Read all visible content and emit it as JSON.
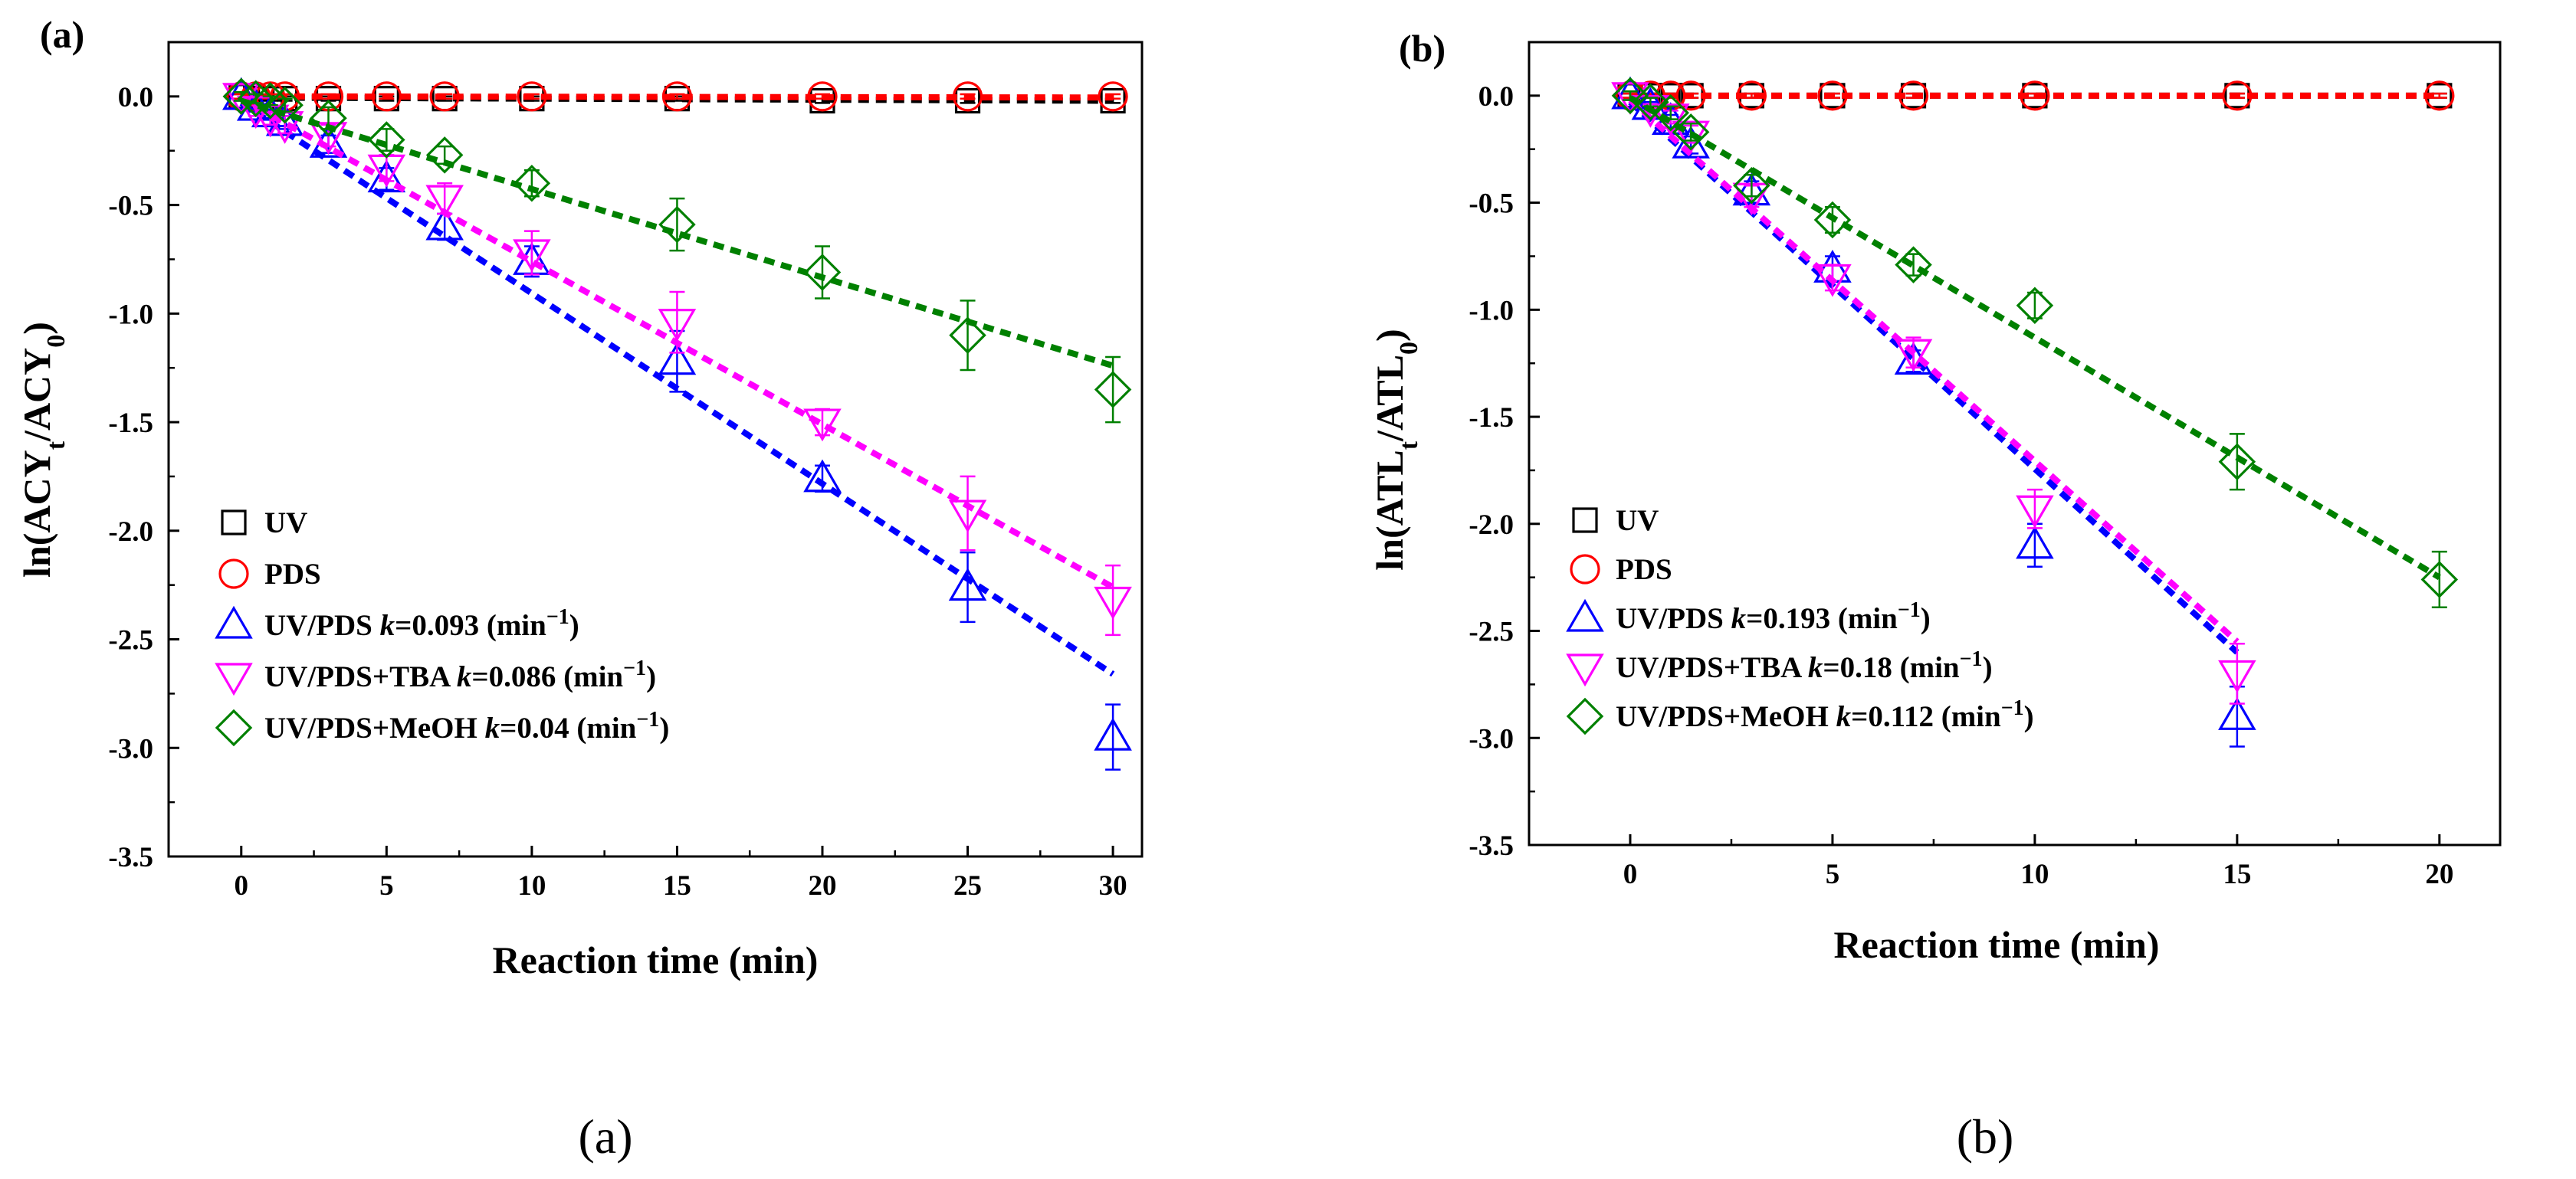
{
  "figure": {
    "captions": [
      "(a)",
      "(b)"
    ]
  },
  "chart_data": [
    {
      "type": "scatter",
      "panel_label": "(a)",
      "xlabel": "Reaction time (min)",
      "ylabel": {
        "pre": "ln(ACY",
        "sub1": "t",
        "mid": "/ACY",
        "sub2": "0",
        "post": ")"
      },
      "xlim": [
        -2.5,
        31
      ],
      "ylim": [
        -3.5,
        0.25
      ],
      "xticks": [
        0,
        5,
        10,
        15,
        20,
        25,
        30
      ],
      "yticks": [
        0.0,
        -0.5,
        -1.0,
        -1.5,
        -2.0,
        -2.5,
        -3.0,
        -3.5
      ],
      "xtick_labels": [
        "0",
        "5",
        "10",
        "15",
        "20",
        "25",
        "30"
      ],
      "ytick_labels": [
        "0.0",
        "-0.5",
        "-1.0",
        "-1.5",
        "-2.0",
        "-2.5",
        "-3.0",
        "-3.5"
      ],
      "legend_position": "bottom-left",
      "series": [
        {
          "name": "UV",
          "k_label": "",
          "marker": "square",
          "color": "#000000",
          "line_color": "#000000",
          "x": [
            0,
            0.5,
            1,
            1.5,
            3,
            5,
            7,
            10,
            15,
            20,
            25,
            30
          ],
          "y": [
            0,
            -0.01,
            -0.01,
            -0.01,
            -0.01,
            -0.01,
            -0.01,
            -0.01,
            -0.01,
            -0.02,
            -0.02,
            -0.02
          ],
          "err": [
            0.01,
            0.01,
            0.01,
            0.01,
            0.01,
            0.01,
            0.01,
            0.01,
            0.01,
            0.01,
            0.01,
            0.01
          ],
          "fit": [
            [
              0,
              -0.005
            ],
            [
              30,
              -0.02
            ]
          ]
        },
        {
          "name": "PDS",
          "k_label": "",
          "marker": "circle",
          "color": "#ff0000",
          "line_color": "#ff0000",
          "x": [
            0,
            0.5,
            1,
            1.5,
            3,
            5,
            7,
            10,
            15,
            20,
            25,
            30
          ],
          "y": [
            0,
            0,
            0,
            0,
            0,
            0,
            0,
            0,
            0,
            0,
            0,
            0
          ],
          "err": [
            0.01,
            0.01,
            0.01,
            0.01,
            0.01,
            0.01,
            0.01,
            0.01,
            0.01,
            0.01,
            0.01,
            0.01
          ],
          "fit": [
            [
              0,
              0
            ],
            [
              30,
              -0.005
            ]
          ]
        },
        {
          "name": "UV/PDS",
          "k_label": "0.093",
          "marker": "triangle-up",
          "color": "#0000ff",
          "line_color": "#0000ff",
          "x": [
            0,
            0.5,
            1,
            1.5,
            3,
            5,
            7,
            10,
            15,
            20,
            25,
            30
          ],
          "y": [
            0,
            -0.05,
            -0.08,
            -0.12,
            -0.22,
            -0.38,
            -0.6,
            -0.76,
            -1.22,
            -1.76,
            -2.26,
            -2.95
          ],
          "err": [
            0.02,
            0.02,
            0.02,
            0.03,
            0.04,
            0.05,
            0.06,
            0.07,
            0.14,
            0.06,
            0.16,
            0.15
          ],
          "fit": [
            [
              0,
              -0.03
            ],
            [
              30,
              -2.66
            ]
          ]
        },
        {
          "name": "UV/PDS+TBA",
          "k_label": "0.086",
          "marker": "triangle-down",
          "color": "#ff00ff",
          "line_color": "#ff00ff",
          "x": [
            0,
            0.5,
            1,
            1.5,
            3,
            5,
            7,
            10,
            15,
            20,
            25,
            30
          ],
          "y": [
            0,
            -0.06,
            -0.1,
            -0.13,
            -0.18,
            -0.33,
            -0.47,
            -0.72,
            -1.04,
            -1.5,
            -1.92,
            -2.32
          ],
          "err": [
            0.02,
            0.03,
            0.03,
            0.04,
            0.05,
            0.06,
            0.07,
            0.1,
            0.14,
            0.06,
            0.17,
            0.16
          ],
          "fit": [
            [
              0,
              -0.01
            ],
            [
              30,
              -2.26
            ]
          ]
        },
        {
          "name": "UV/PDS+MeOH",
          "k_label": "0.04",
          "marker": "diamond",
          "color": "#008000",
          "line_color": "#008000",
          "x": [
            0,
            0.5,
            1,
            1.5,
            3,
            5,
            7,
            10,
            15,
            20,
            25,
            30
          ],
          "y": [
            0,
            -0.01,
            -0.02,
            -0.04,
            -0.1,
            -0.2,
            -0.27,
            -0.4,
            -0.59,
            -0.81,
            -1.1,
            -1.35
          ],
          "err": [
            0.02,
            0.02,
            0.02,
            0.03,
            0.05,
            0.05,
            0.04,
            0.06,
            0.12,
            0.12,
            0.16,
            0.15
          ],
          "fit": [
            [
              0,
              -0.02
            ],
            [
              30,
              -1.24
            ]
          ]
        }
      ]
    },
    {
      "type": "scatter",
      "panel_label": "(b)",
      "xlabel": "Reaction time (min)",
      "ylabel": {
        "pre": "ln(ATL",
        "sub1": "t",
        "mid": "/ATL",
        "sub2": "0",
        "post": ")"
      },
      "xlim": [
        -2.5,
        21.5
      ],
      "ylim": [
        -3.5,
        0.25
      ],
      "xticks": [
        0,
        5,
        10,
        15,
        20
      ],
      "yticks": [
        0.0,
        -0.5,
        -1.0,
        -1.5,
        -2.0,
        -2.5,
        -3.0,
        -3.5
      ],
      "xtick_labels": [
        "0",
        "5",
        "10",
        "15",
        "20"
      ],
      "ytick_labels": [
        "0.0",
        "-0.5",
        "-1.0",
        "-1.5",
        "-2.0",
        "-2.5",
        "-3.0",
        "-3.5"
      ],
      "legend_position": "bottom-left",
      "series": [
        {
          "name": "UV",
          "k_label": "",
          "marker": "square",
          "color": "#000000",
          "line_color": "#000000",
          "x": [
            0,
            0.5,
            1,
            1.5,
            3,
            5,
            7,
            10,
            15,
            20
          ],
          "y": [
            0,
            0,
            0,
            0,
            0,
            0,
            0,
            0,
            0,
            0
          ],
          "err": [
            0.01,
            0.01,
            0.01,
            0.01,
            0.01,
            0.01,
            0.01,
            0.01,
            0.01,
            0.01
          ],
          "fit": [
            [
              0,
              0
            ],
            [
              20,
              0
            ]
          ]
        },
        {
          "name": "PDS",
          "k_label": "",
          "marker": "circle",
          "color": "#ff0000",
          "line_color": "#ff0000",
          "x": [
            0,
            0.5,
            1,
            1.5,
            3,
            5,
            7,
            10,
            15,
            20
          ],
          "y": [
            0,
            0,
            0,
            0,
            0,
            0,
            0,
            0,
            0,
            0
          ],
          "err": [
            0.01,
            0.01,
            0.01,
            0.01,
            0.01,
            0.01,
            0.01,
            0.01,
            0.01,
            0.01
          ],
          "fit": [
            [
              0,
              0
            ],
            [
              20,
              0
            ]
          ]
        },
        {
          "name": "UV/PDS",
          "k_label": "0.193",
          "marker": "triangle-up",
          "color": "#0000ff",
          "line_color": "#0000ff",
          "x": [
            0,
            0.5,
            1,
            1.5,
            3,
            5,
            7,
            10,
            15
          ],
          "y": [
            0,
            -0.05,
            -0.12,
            -0.23,
            -0.45,
            -0.81,
            -1.24,
            -2.1,
            -2.9
          ],
          "err": [
            0.02,
            0.02,
            0.03,
            0.04,
            0.05,
            0.06,
            0.05,
            0.1,
            0.14
          ],
          "fit": [
            [
              0,
              -0.03
            ],
            [
              15,
              -2.6
            ]
          ]
        },
        {
          "name": "UV/PDS+TBA",
          "k_label": "0.18",
          "marker": "triangle-down",
          "color": "#ff00ff",
          "line_color": "#ff00ff",
          "x": [
            0,
            0.5,
            1,
            1.5,
            3,
            5,
            7,
            10,
            15
          ],
          "y": [
            0,
            -0.06,
            -0.1,
            -0.18,
            -0.47,
            -0.85,
            -1.2,
            -1.93,
            -2.7
          ],
          "err": [
            0.02,
            0.02,
            0.03,
            0.04,
            0.05,
            0.06,
            0.07,
            0.09,
            0.14
          ],
          "fit": [
            [
              0,
              -0.02
            ],
            [
              15,
              -2.55
            ]
          ]
        },
        {
          "name": "UV/PDS+MeOH",
          "k_label": "0.112",
          "marker": "diamond",
          "color": "#008000",
          "line_color": "#008000",
          "x": [
            0,
            0.5,
            1,
            1.5,
            3,
            5,
            7,
            10,
            15,
            20
          ],
          "y": [
            0,
            -0.03,
            -0.08,
            -0.17,
            -0.42,
            -0.58,
            -0.79,
            -0.98,
            -1.71,
            -2.26
          ],
          "err": [
            0.02,
            0.02,
            0.03,
            0.04,
            0.05,
            0.06,
            0.05,
            0.06,
            0.13,
            0.13
          ],
          "fit": [
            [
              0,
              -0.01
            ],
            [
              20,
              -2.25
            ]
          ]
        }
      ]
    }
  ],
  "legend_text": {
    "k_prefix": "k",
    "k_eq": "=",
    "unit_pre": " (min",
    "unit_sup": "−1",
    "unit_post": ")"
  }
}
